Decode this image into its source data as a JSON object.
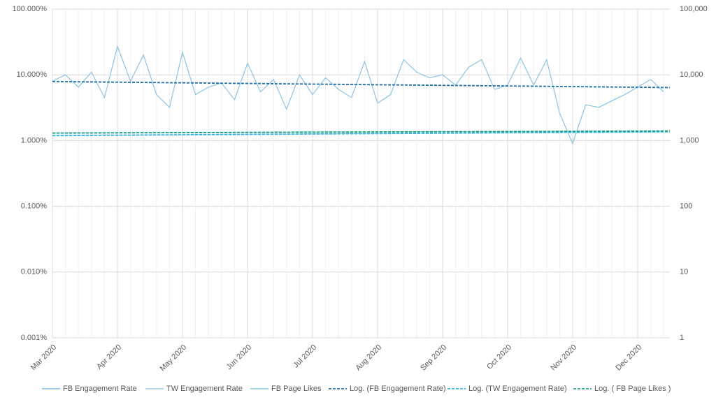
{
  "chart_data": {
    "type": "line",
    "categories": [
      "Mar 2020",
      null,
      null,
      null,
      null,
      "Apr 2020",
      null,
      null,
      null,
      null,
      "May 2020",
      null,
      null,
      null,
      null,
      "Jun 2020",
      null,
      null,
      null,
      null,
      "Jul 2020",
      null,
      null,
      null,
      null,
      "Aug 2020",
      null,
      null,
      null,
      null,
      "Sep 2020",
      null,
      null,
      null,
      null,
      "Oct 2020",
      null,
      null,
      null,
      null,
      "Nov 2020",
      null,
      null,
      null,
      null,
      "Dec 2020",
      null,
      null
    ],
    "series": [
      {
        "name": "FB Engagement Rate",
        "color": "#8fc3e0",
        "values": [
          8,
          10,
          6.5,
          11,
          4.5,
          27,
          8,
          20,
          5,
          3.2,
          22,
          5,
          6.5,
          7.5,
          4.2,
          15,
          5.5,
          8.5,
          3,
          10,
          5,
          9,
          6,
          4.5,
          16,
          3.7,
          5,
          17,
          11,
          9,
          10,
          7,
          13,
          17,
          6,
          7,
          18,
          7,
          17,
          2.6,
          0.9,
          3.5,
          3.2,
          4,
          5,
          6.5,
          8.5,
          5.5
        ]
      },
      {
        "name": "TW Engagement Rate",
        "color": "#a9d1ea",
        "values": [
          1.2,
          1.21,
          1.19,
          1.2,
          1.22,
          1.21,
          1.2,
          1.22,
          1.23,
          1.22,
          1.23,
          1.24,
          1.23,
          1.24,
          1.25,
          1.24,
          1.25,
          1.26,
          1.25,
          1.26,
          1.27,
          1.26,
          1.27,
          1.28,
          1.27,
          1.28,
          1.29,
          1.28,
          1.29,
          1.3,
          1.29,
          1.3,
          1.31,
          1.3,
          1.31,
          1.32,
          1.31,
          1.32,
          1.33,
          1.32,
          1.33,
          1.34,
          1.33,
          1.34,
          1.35,
          1.34,
          1.35,
          1.36
        ]
      },
      {
        "name": "FB Page Likes",
        "color": "#9ccbe5",
        "axis": "y2",
        "values": [
          1300,
          1310,
          1315,
          1320,
          1322,
          1325,
          1328,
          1330,
          1332,
          1334,
          1336,
          1338,
          1340,
          1342,
          1344,
          1346,
          1348,
          1350,
          1352,
          1353,
          1355,
          1356,
          1358,
          1360,
          1361,
          1363,
          1364,
          1366,
          1367,
          1369,
          1370,
          1372,
          1373,
          1375,
          1376,
          1378,
          1379,
          1381,
          1382,
          1384,
          1385,
          1387,
          1388,
          1390,
          1391,
          1393,
          1395,
          1400
        ]
      }
    ],
    "trendlines": [
      {
        "name": "Log. (FB Engagement Rate)",
        "color": "#1f6fa8",
        "values": [
          7.9,
          6.4
        ]
      },
      {
        "name": "Log. (TW Engagement Rate)",
        "color": "#2eb4e0",
        "values": [
          1.19,
          1.36
        ]
      },
      {
        "name": "Log. ( FB Page Likes )",
        "color": "#1aa37a",
        "axis": "y2",
        "values": [
          1300,
          1400
        ]
      }
    ],
    "log_scale": true,
    "grid": true,
    "ylim": [
      0.001,
      100
    ],
    "yticks": [
      {
        "value": 0.001,
        "label": "0.001%"
      },
      {
        "value": 0.01,
        "label": "0.010%"
      },
      {
        "value": 0.1,
        "label": "0.100%"
      },
      {
        "value": 1,
        "label": "1.000%"
      },
      {
        "value": 10,
        "label": "10.000%"
      },
      {
        "value": 100,
        "label": "100.000%"
      }
    ],
    "y2lim": [
      1,
      100000
    ],
    "y2ticks": [
      1,
      10,
      100,
      {
        "value": 1000,
        "label": "1,000"
      },
      {
        "value": 10000,
        "label": "10,000"
      },
      {
        "value": 100000,
        "label": "100,000"
      }
    ],
    "legend": "bottom"
  }
}
